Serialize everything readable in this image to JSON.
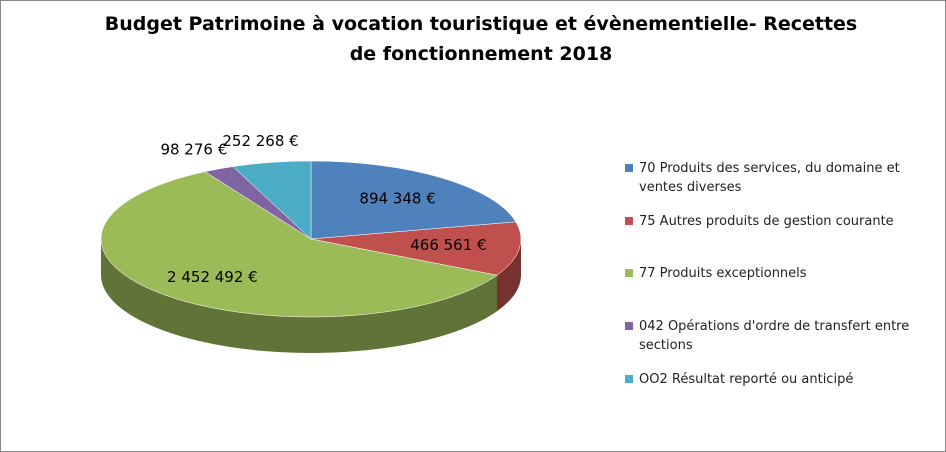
{
  "chart_data": {
    "type": "pie",
    "title": "Budget Patrimoine à vocation touristique et évènementielle- Recettes de fonctionnement 2018",
    "categories": [
      "70 Produits des services, du domaine et ventes diverses",
      "75 Autres produits de gestion courante",
      "77 Produits exceptionnels",
      "042 Opérations d'ordre de transfert entre sections",
      "OO2 Résultat reporté ou anticipé"
    ],
    "values": [
      894348,
      466561,
      2452492,
      98276,
      252268
    ],
    "value_labels": [
      "894 348 €",
      "466 561 €",
      "2 452 492 €",
      "98 276 €",
      "252 268 €"
    ],
    "colors": [
      "#4f81bd",
      "#c0504d",
      "#9bbb59",
      "#8064a2",
      "#4bacc6"
    ],
    "legend": "right"
  }
}
